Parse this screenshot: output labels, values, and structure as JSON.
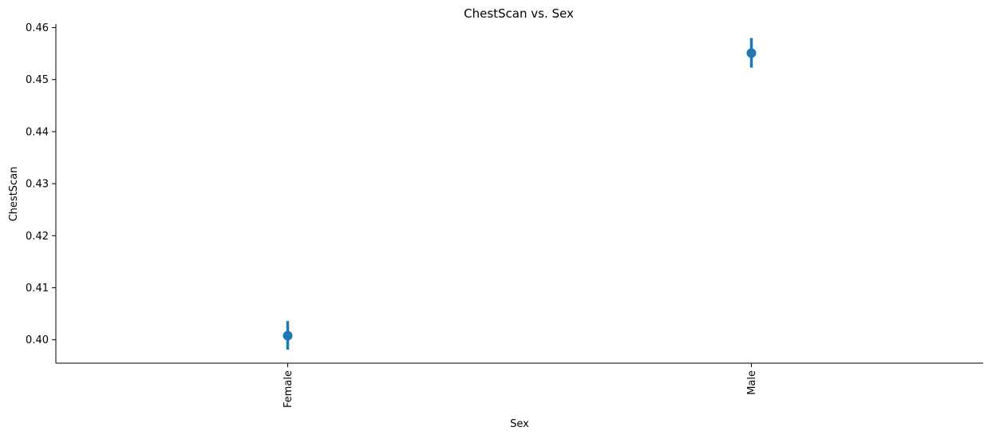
{
  "chart_data": {
    "type": "scatter",
    "title": "ChestScan vs. Sex",
    "xlabel": "Sex",
    "ylabel": "ChestScan",
    "categories": [
      "Female",
      "Male"
    ],
    "series": [
      {
        "values": [
          0.4008,
          0.4551
        ],
        "ci_low": [
          0.3981,
          0.4523
        ],
        "ci_high": [
          0.4036,
          0.458
        ],
        "color": "#1f77b4"
      }
    ],
    "ylim": [
      0.3955,
      0.4607
    ],
    "yticks": [
      0.4,
      0.41,
      0.42,
      0.43,
      0.44,
      0.45,
      0.46
    ],
    "ytick_labels": [
      "0.40",
      "0.41",
      "0.42",
      "0.43",
      "0.44",
      "0.45",
      "0.46"
    ],
    "grid": false,
    "legend": "none"
  }
}
